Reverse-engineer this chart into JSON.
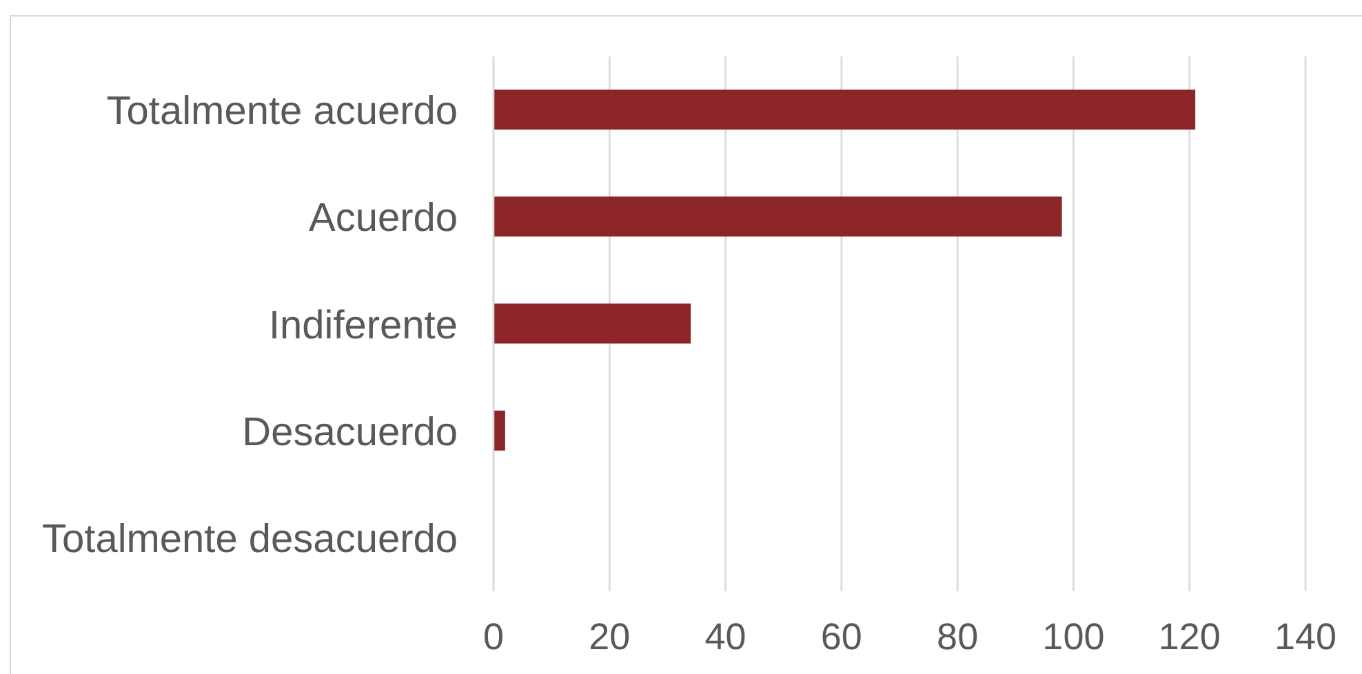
{
  "chart_data": {
    "type": "bar",
    "orientation": "horizontal",
    "categories": [
      "Totalmente acuerdo",
      "Acuerdo",
      "Indiferente",
      "Desacuerdo",
      "Totalmente desacuerdo"
    ],
    "values": [
      121,
      98,
      34,
      2,
      0
    ],
    "color": "#8b2528",
    "xlim": [
      0,
      140
    ],
    "xticks": [
      0,
      20,
      40,
      60,
      80,
      100,
      120,
      140
    ],
    "grid": "x"
  }
}
